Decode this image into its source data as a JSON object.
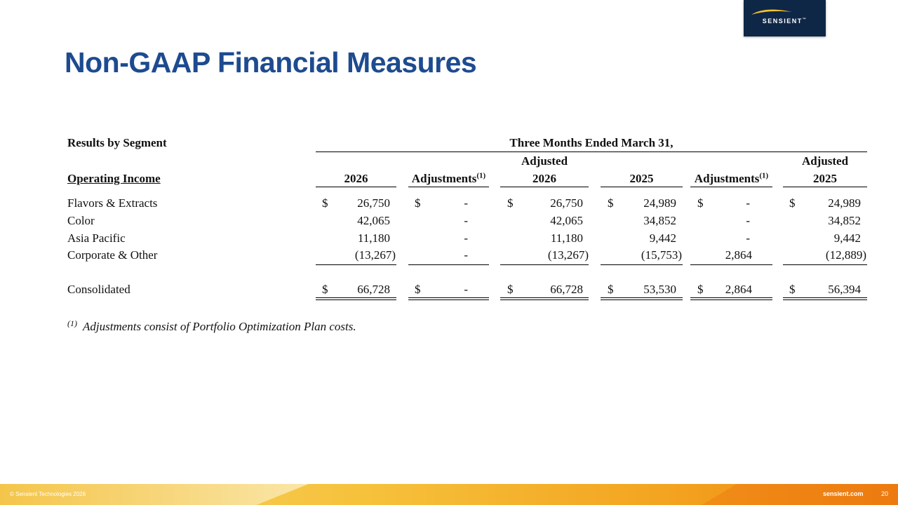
{
  "logo": {
    "text": "SENSIENT",
    "mark": "™"
  },
  "title": "Non-GAAP Financial Measures",
  "table": {
    "section_label": "Results by Segment",
    "period_header": "Three Months Ended March 31,",
    "row_header": "Operating Income",
    "columns": [
      {
        "top": "",
        "label": "2026"
      },
      {
        "top": "",
        "label": "Adjustments",
        "note": "(1)"
      },
      {
        "top": "Adjusted",
        "label": "2026"
      },
      {
        "top": "",
        "label": "2025"
      },
      {
        "top": "",
        "label": "Adjustments",
        "note": "(1)"
      },
      {
        "top": "Adjusted",
        "label": "2025"
      }
    ],
    "currency": "$",
    "rows": [
      {
        "label": "Flavors & Extracts",
        "values": [
          "26,750",
          "-",
          "26,750",
          "24,989",
          "-",
          "24,989"
        ]
      },
      {
        "label": "Color",
        "values": [
          "42,065",
          "-",
          "42,065",
          "34,852",
          "-",
          "34,852"
        ]
      },
      {
        "label": "Asia Pacific",
        "values": [
          "11,180",
          "-",
          "11,180",
          "9,442",
          "-",
          "9,442"
        ]
      },
      {
        "label": "Corporate & Other",
        "values": [
          "(13,267)",
          "-",
          "(13,267)",
          "(15,753)",
          "2,864",
          "(12,889)"
        ]
      }
    ],
    "total": {
      "label": "Consolidated",
      "values": [
        "66,728",
        "-",
        "66,728",
        "53,530",
        "2,864",
        "56,394"
      ]
    }
  },
  "footnote": {
    "marker": "(1)",
    "text": "Adjustments consist of Portfolio Optimization Plan costs."
  },
  "footer": {
    "copyright": "© Sensient Technologies 2026",
    "website": "sensient.com",
    "page_number": "20"
  }
}
